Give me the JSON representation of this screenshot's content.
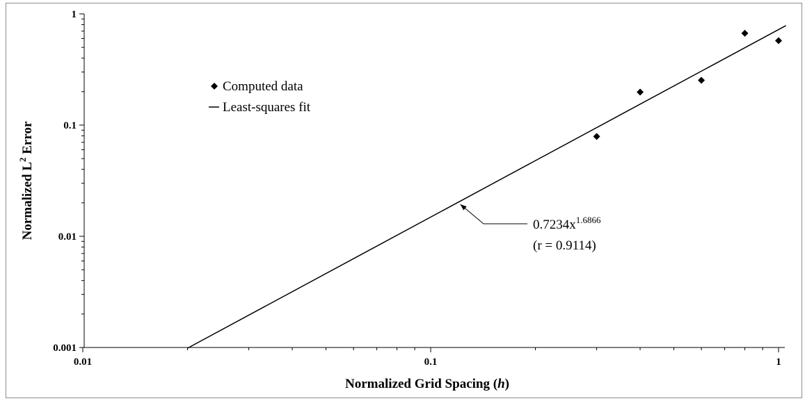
{
  "chart_data": {
    "type": "scatter",
    "xscale": "log",
    "yscale": "log",
    "xlim": [
      0.01,
      1
    ],
    "ylim": [
      0.001,
      1
    ],
    "grid": false,
    "legend_position": "top-left",
    "xlabel": {
      "text": "Normalized Grid Spacing (",
      "italic": "h",
      "suffix": ")"
    },
    "ylabel": {
      "base": "Normalized L",
      "sup": "2",
      "suffix": " Error"
    },
    "x_ticks": [
      {
        "value": 0.01,
        "label": "0.01"
      },
      {
        "value": 0.1,
        "label": "0.1"
      },
      {
        "value": 1,
        "label": "1"
      }
    ],
    "y_ticks": [
      {
        "value": 0.001,
        "label": "0.001"
      },
      {
        "value": 0.01,
        "label": "0.01"
      },
      {
        "value": 0.1,
        "label": "0.1"
      },
      {
        "value": 1,
        "label": "1"
      }
    ],
    "series": [
      {
        "name": "Computed data",
        "marker": "diamond",
        "color": "#000000",
        "x": [
          0.3,
          0.4,
          0.6,
          0.8,
          1.0
        ],
        "y": [
          0.079,
          0.198,
          0.253,
          0.67,
          0.575
        ]
      },
      {
        "name": "Least-squares fit",
        "type": "line",
        "color": "#000000",
        "coefficient": 0.7234,
        "exponent": 1.6866,
        "x_range": [
          0.02,
          1.05
        ]
      }
    ],
    "annotation": {
      "base": "0.7234x",
      "sup": "1.6866",
      "line2": "(r = 0.9114)",
      "arrow_target_x": 0.12
    }
  }
}
